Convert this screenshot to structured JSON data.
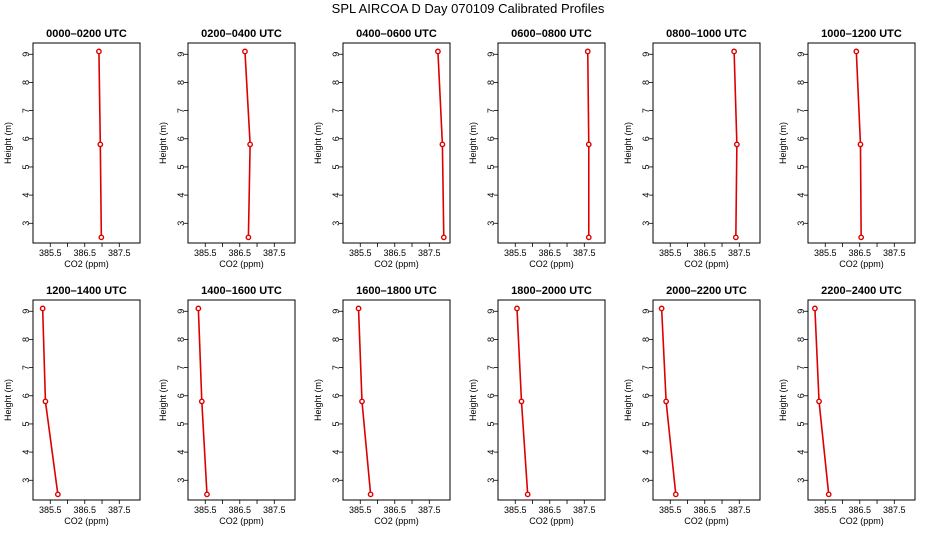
{
  "title": "SPL AIRCOA D  Day 070109  Calibrated Profiles",
  "colors": {
    "series": "#dd0000",
    "axis": "#000000"
  },
  "chart_data": {
    "type": "line",
    "layout": "2x6 small multiples",
    "xlabel": "CO2 (ppm)",
    "ylabel": "Height (m)",
    "xlim": [
      385.0,
      388.1
    ],
    "ylim": [
      2.3,
      9.4
    ],
    "xticks": [
      385.5,
      386.0,
      386.5,
      387.0,
      387.5
    ],
    "xtick_labels": [
      "385.5",
      "",
      "386.5",
      "",
      "387.5"
    ],
    "yticks": [
      3,
      4,
      5,
      6,
      7,
      8,
      9
    ],
    "ytick_labels": [
      "3",
      "4",
      "5",
      "6",
      "7",
      "8",
      "9"
    ],
    "grid": false,
    "panels": [
      {
        "title": "0000–0200 UTC",
        "co2": [
          386.91,
          386.95,
          386.98
        ],
        "height": [
          9.1,
          5.8,
          2.5
        ]
      },
      {
        "title": "0200–0400 UTC",
        "co2": [
          386.65,
          386.8,
          386.75
        ],
        "height": [
          9.1,
          5.8,
          2.5
        ]
      },
      {
        "title": "0400–0600 UTC",
        "co2": [
          387.75,
          387.88,
          387.92
        ],
        "height": [
          9.1,
          5.8,
          2.5
        ]
      },
      {
        "title": "0600–0800 UTC",
        "co2": [
          387.6,
          387.63,
          387.63
        ],
        "height": [
          9.1,
          5.8,
          2.5
        ]
      },
      {
        "title": "0800–1000 UTC",
        "co2": [
          387.35,
          387.43,
          387.4
        ],
        "height": [
          9.1,
          5.8,
          2.5
        ]
      },
      {
        "title": "1000–1200 UTC",
        "co2": [
          386.4,
          386.52,
          386.54
        ],
        "height": [
          9.1,
          5.8,
          2.5
        ]
      },
      {
        "title": "1200–1400 UTC",
        "co2": [
          385.28,
          385.36,
          385.72
        ],
        "height": [
          9.1,
          5.8,
          2.5
        ]
      },
      {
        "title": "1400–1600 UTC",
        "co2": [
          385.3,
          385.4,
          385.55
        ],
        "height": [
          9.1,
          5.8,
          2.5
        ]
      },
      {
        "title": "1600–1800 UTC",
        "co2": [
          385.45,
          385.55,
          385.8
        ],
        "height": [
          9.1,
          5.8,
          2.5
        ]
      },
      {
        "title": "1800–2000 UTC",
        "co2": [
          385.55,
          385.68,
          385.86
        ],
        "height": [
          9.1,
          5.8,
          2.5
        ]
      },
      {
        "title": "2000–2200 UTC",
        "co2": [
          385.25,
          385.38,
          385.66
        ],
        "height": [
          9.1,
          5.8,
          2.5
        ]
      },
      {
        "title": "2200–2400 UTC",
        "co2": [
          385.2,
          385.32,
          385.6
        ],
        "height": [
          9.1,
          5.8,
          2.5
        ]
      }
    ]
  }
}
